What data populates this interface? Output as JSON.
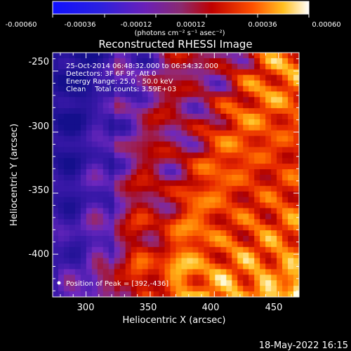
{
  "colorbar": {
    "ticks": [
      "-0.00060",
      "-0.00036",
      "-0.00012",
      "0.00012",
      "0.00036",
      "0.00060"
    ],
    "unit_label": "(photons cm⁻² s⁻¹ asec⁻²)",
    "range": [
      -0.0006,
      0.0006
    ]
  },
  "chart_data": {
    "type": "heatmap",
    "title": "Reconstructed RHESSI Image",
    "xlabel": "Heliocentric X (arcsec)",
    "ylabel": "Heliocentric Y (arcsec)",
    "xlim": [
      274,
      466
    ],
    "ylim": [
      -435,
      -235
    ],
    "x_ticks": [
      300,
      350,
      400,
      450
    ],
    "y_ticks": [
      -250,
      -300,
      -350,
      -400
    ],
    "annotations": [
      "25-Oct-2014 06:48:32.000 to 06:54:32.000",
      "Detectors: 3F 6F 9F, Att 0",
      "Energy Range: 25.0 - 50.0 keV",
      "Clean    Total counts: 3.59E+03"
    ],
    "peak_label": "Position of Peak = [392,-436]",
    "peak": [
      392,
      -436
    ]
  },
  "footer": {
    "date": "18-May-2022 16:15"
  }
}
